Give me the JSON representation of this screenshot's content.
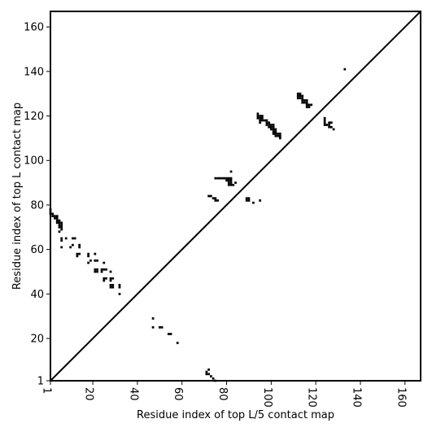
{
  "chart_data": {
    "type": "scatter",
    "title": "",
    "xlabel": "Residue index of top L/5 contact map",
    "ylabel": "Residue index of top L contact map",
    "xlim": [
      1,
      167
    ],
    "ylim": [
      1,
      167
    ],
    "xticks": [
      1,
      20,
      40,
      60,
      80,
      100,
      120,
      140,
      160
    ],
    "yticks": [
      1,
      20,
      40,
      60,
      80,
      100,
      120,
      140,
      160
    ],
    "x_tick_labels": [
      "1",
      "20",
      "40",
      "60",
      "80",
      "100",
      "120",
      "140",
      "160"
    ],
    "y_tick_labels": [
      "1",
      "20",
      "40",
      "60",
      "80",
      "100",
      "120",
      "140",
      "160"
    ],
    "diagonal": true,
    "grid": false,
    "marker_color": "#000000",
    "points": [
      [
        1,
        78
      ],
      [
        1,
        77
      ],
      [
        1,
        76
      ],
      [
        2,
        76
      ],
      [
        2,
        75
      ],
      [
        3,
        75
      ],
      [
        4,
        75
      ],
      [
        3,
        74
      ],
      [
        4,
        74
      ],
      [
        4,
        73
      ],
      [
        5,
        73
      ],
      [
        4,
        72
      ],
      [
        5,
        72
      ],
      [
        6,
        72
      ],
      [
        5,
        71
      ],
      [
        6,
        71
      ],
      [
        5,
        70
      ],
      [
        6,
        70
      ],
      [
        6,
        69
      ],
      [
        5,
        68
      ],
      [
        6,
        65
      ],
      [
        6,
        64
      ],
      [
        8,
        65
      ],
      [
        11,
        65
      ],
      [
        12,
        65
      ],
      [
        11,
        62
      ],
      [
        10,
        61
      ],
      [
        6,
        61
      ],
      [
        14,
        62
      ],
      [
        14,
        61
      ],
      [
        13,
        58
      ],
      [
        14,
        58
      ],
      [
        13,
        57
      ],
      [
        18,
        58
      ],
      [
        18,
        57
      ],
      [
        19,
        55
      ],
      [
        18,
        54
      ],
      [
        21,
        58
      ],
      [
        21,
        55
      ],
      [
        22,
        55
      ],
      [
        21,
        51
      ],
      [
        22,
        51
      ],
      [
        21,
        50
      ],
      [
        22,
        50
      ],
      [
        25,
        54
      ],
      [
        24,
        51
      ],
      [
        25,
        51
      ],
      [
        26,
        51
      ],
      [
        24,
        50
      ],
      [
        28,
        50
      ],
      [
        25,
        47
      ],
      [
        26,
        47
      ],
      [
        28,
        47
      ],
      [
        29,
        47
      ],
      [
        25,
        46
      ],
      [
        28,
        46
      ],
      [
        28,
        44
      ],
      [
        29,
        44
      ],
      [
        28,
        43
      ],
      [
        29,
        43
      ],
      [
        32,
        44
      ],
      [
        32,
        43
      ],
      [
        32,
        40
      ],
      [
        47,
        29
      ],
      [
        47,
        25
      ],
      [
        50,
        25
      ],
      [
        51,
        25
      ],
      [
        54,
        22
      ],
      [
        55,
        22
      ],
      [
        58,
        18
      ],
      [
        71,
        5
      ],
      [
        71,
        4
      ],
      [
        72,
        6
      ],
      [
        72,
        4
      ],
      [
        73,
        3
      ],
      [
        74,
        2
      ],
      [
        75,
        1
      ],
      [
        72,
        84
      ],
      [
        73,
        84
      ],
      [
        74,
        83
      ],
      [
        75,
        83
      ],
      [
        75,
        82
      ],
      [
        76,
        82
      ],
      [
        75,
        92
      ],
      [
        76,
        92
      ],
      [
        77,
        92
      ],
      [
        78,
        92
      ],
      [
        79,
        92
      ],
      [
        80,
        92
      ],
      [
        81,
        92
      ],
      [
        82,
        92
      ],
      [
        82,
        95
      ],
      [
        80,
        91
      ],
      [
        81,
        91
      ],
      [
        82,
        91
      ],
      [
        81,
        90
      ],
      [
        82,
        90
      ],
      [
        81,
        89
      ],
      [
        82,
        89
      ],
      [
        83,
        89
      ],
      [
        84,
        90
      ],
      [
        89,
        83
      ],
      [
        90,
        83
      ],
      [
        89,
        82
      ],
      [
        90,
        82
      ],
      [
        92,
        81
      ],
      [
        95,
        82
      ],
      [
        94,
        121
      ],
      [
        94,
        120
      ],
      [
        95,
        120
      ],
      [
        96,
        120
      ],
      [
        94,
        119
      ],
      [
        95,
        119
      ],
      [
        96,
        119
      ],
      [
        95,
        118
      ],
      [
        96,
        118
      ],
      [
        95,
        117
      ],
      [
        97,
        118
      ],
      [
        98,
        118
      ],
      [
        98,
        117
      ],
      [
        99,
        117
      ],
      [
        98,
        116
      ],
      [
        99,
        116
      ],
      [
        100,
        116
      ],
      [
        101,
        116
      ],
      [
        99,
        115
      ],
      [
        100,
        115
      ],
      [
        101,
        115
      ],
      [
        100,
        114
      ],
      [
        101,
        114
      ],
      [
        102,
        114
      ],
      [
        101,
        113
      ],
      [
        102,
        113
      ],
      [
        101,
        112
      ],
      [
        102,
        112
      ],
      [
        103,
        112
      ],
      [
        104,
        112
      ],
      [
        102,
        111
      ],
      [
        103,
        111
      ],
      [
        104,
        111
      ],
      [
        104,
        110
      ],
      [
        112,
        130
      ],
      [
        113,
        130
      ],
      [
        112,
        129
      ],
      [
        113,
        129
      ],
      [
        114,
        129
      ],
      [
        112,
        128
      ],
      [
        113,
        128
      ],
      [
        114,
        128
      ],
      [
        114,
        127
      ],
      [
        115,
        127
      ],
      [
        116,
        127
      ],
      [
        114,
        126
      ],
      [
        115,
        126
      ],
      [
        116,
        126
      ],
      [
        116,
        125
      ],
      [
        117,
        125
      ],
      [
        118,
        125
      ],
      [
        116,
        124
      ],
      [
        117,
        124
      ],
      [
        124,
        119
      ],
      [
        124,
        118
      ],
      [
        124,
        117
      ],
      [
        124,
        116
      ],
      [
        125,
        116
      ],
      [
        126,
        117
      ],
      [
        126,
        116
      ],
      [
        127,
        117
      ],
      [
        126,
        115
      ],
      [
        127,
        115
      ],
      [
        128,
        114
      ],
      [
        133,
        141
      ]
    ]
  }
}
